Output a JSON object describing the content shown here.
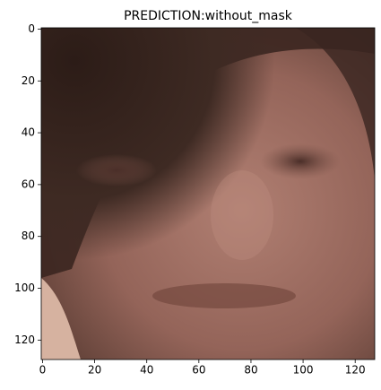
{
  "chart_data": {
    "type": "image",
    "title": "PREDICTION:without_mask",
    "xlim": [
      -0.5,
      127.5
    ],
    "ylim": [
      127.5,
      -0.5
    ],
    "xticks": [
      0,
      20,
      40,
      60,
      80,
      100,
      120
    ],
    "yticks": [
      0,
      20,
      40,
      60,
      80,
      100,
      120
    ]
  }
}
